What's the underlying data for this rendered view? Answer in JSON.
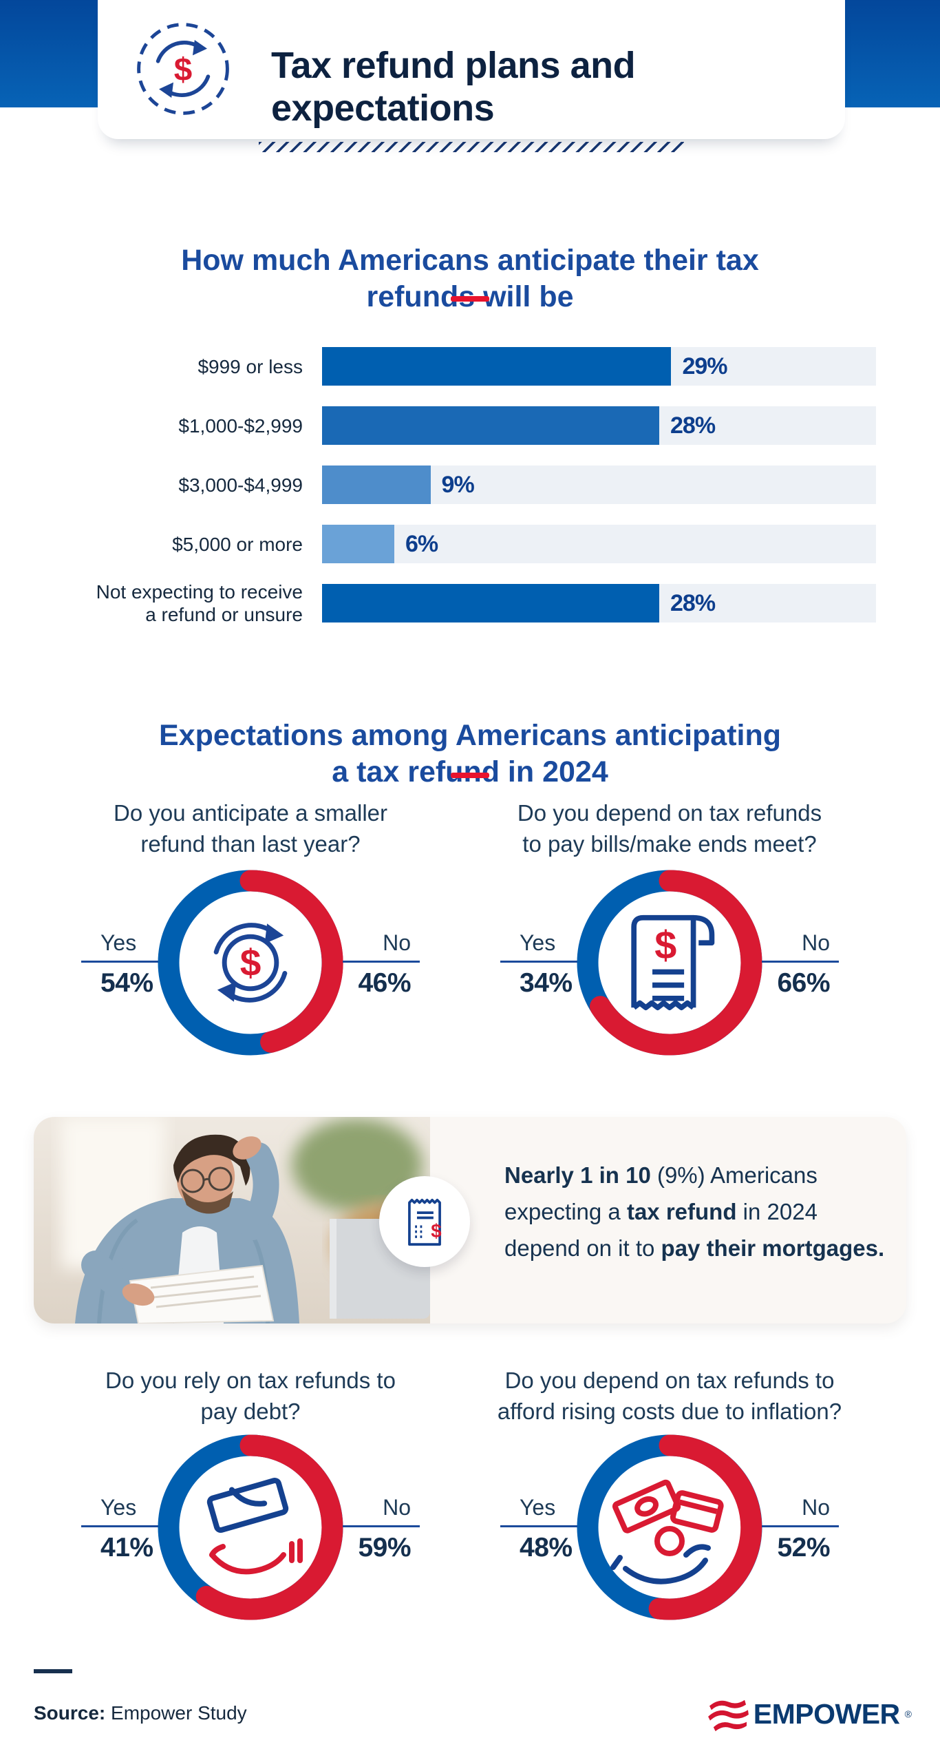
{
  "header": {
    "title": "Tax refund plans and\nexpectations"
  },
  "section1": {
    "title": "How much Americans anticipate their tax\nrefunds will be"
  },
  "section2": {
    "title": "Expectations among Americans anticipating\na tax refund in 2024"
  },
  "chart_data": [
    {
      "type": "bar",
      "title": "How much Americans anticipate their tax refunds will be",
      "categories": [
        "$999 or less",
        "$1,000-$2,999",
        "$3,000-$4,999",
        "$5,000 or more",
        "Not expecting to receive\na refund or unsure"
      ],
      "values": [
        29,
        28,
        9,
        6,
        28
      ],
      "value_labels": [
        "29%",
        "28%",
        "9%",
        "6%",
        "28%"
      ],
      "bar_colors": [
        "#005fb0",
        "#1a69b5",
        "#4e8dcb",
        "#6aa2d7",
        "#005fb0"
      ],
      "track_color": "#edf1f6",
      "xlabel": "",
      "ylabel": "",
      "xlim": [
        0,
        46
      ],
      "grid": false,
      "orientation": "horizontal"
    },
    {
      "type": "pie",
      "title": "Do you anticipate a smaller\nrefund than last year?",
      "labels": [
        "Yes",
        "No"
      ],
      "values": [
        54,
        46
      ],
      "value_labels": [
        "54%",
        "46%"
      ],
      "colors": {
        "yes": "#005fb0",
        "no": "#d91a32"
      },
      "icon": "cycle",
      "icon_size": 172
    },
    {
      "type": "pie",
      "title": "Do you depend on tax refunds\nto pay bills/make ends meet?",
      "labels": [
        "Yes",
        "No"
      ],
      "values": [
        34,
        66
      ],
      "value_labels": [
        "34%",
        "66%"
      ],
      "colors": {
        "yes": "#005fb0",
        "no": "#d91a32"
      },
      "icon": "receipt",
      "icon_size": 192
    },
    {
      "type": "pie",
      "title": "Do you rely on tax refunds to\npay debt?",
      "labels": [
        "Yes",
        "No"
      ],
      "values": [
        41,
        59
      ],
      "value_labels": [
        "41%",
        "59%"
      ],
      "colors": {
        "yes": "#005fb0",
        "no": "#d91a32"
      },
      "icon": "debt",
      "icon_size": 200
    },
    {
      "type": "pie",
      "title": "Do you depend on tax refunds to\nafford rising costs due to inflation?",
      "labels": [
        "Yes",
        "No"
      ],
      "values": [
        48,
        52
      ],
      "value_labels": [
        "48%",
        "52%"
      ],
      "colors": {
        "yes": "#005fb0",
        "no": "#d91a32"
      },
      "icon": "cash-hand",
      "icon_size": 200
    }
  ],
  "callout": {
    "lines": [
      [
        {
          "t": "Nearly 1 in 10 ",
          "b": true
        },
        {
          "t": "(9%) Americans",
          "b": false
        }
      ],
      [
        {
          "t": "expecting a ",
          "b": false
        },
        {
          "t": "tax refund",
          "b": true
        },
        {
          "t": " in 2024",
          "b": false
        }
      ],
      [
        {
          "t": "depend on it to ",
          "b": false
        },
        {
          "t": "pay their mortgages.",
          "b": true
        }
      ]
    ]
  },
  "footer": {
    "source_label": "Source:",
    "source_text": " Empower Study",
    "brand": "EMPOWER",
    "reg_mark": "®"
  },
  "colors": {
    "band_top": "#03479b",
    "band_bottom": "#0763b6",
    "headline_navy": "#0d2240",
    "section_blue": "#1a4b9e",
    "accent_red": "#e8132d",
    "donut_red": "#d91a32",
    "donut_blue": "#005fb0",
    "bar_value_blue": "#0d3e8d",
    "line_blue": "#1b4a9b",
    "callout_bg": "#faf7f4"
  }
}
